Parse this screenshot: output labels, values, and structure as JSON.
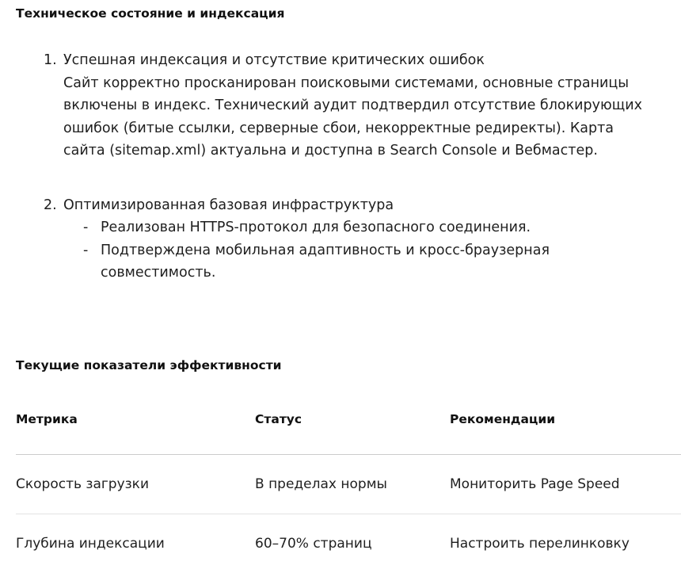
{
  "section1": {
    "title": "Техническое состояние и индексация",
    "items": [
      {
        "number": "1.",
        "title": "Успешная индексация и отсутствие критических ошибок",
        "text": "Сайт корректно просканирован поисковыми системами, основные страницы включены в индекс. Технический аудит подтвердил отсутствие блокирующих ошибок (битые ссылки, серверные сбои, некорректные редиректы). Карта сайта (sitemap.xml) актуальна и доступна в Search Console и Вебмастер."
      },
      {
        "number": "2.",
        "title": "Оптимизированная базовая инфраструктура",
        "bullets": [
          "Реализован HTTPS-протокол для безопасного соединения.",
          "Подтверждена мобильная адаптивность и кросс-браузерная совместимость."
        ]
      }
    ]
  },
  "section2": {
    "title": "Текущие показатели эффективности",
    "table": {
      "headers": [
        "Метрика",
        "Статус",
        "Рекомендации"
      ],
      "rows": [
        [
          "Скорость загрузки",
          "В пределах нормы",
          "Мониторить Page Speed"
        ],
        [
          "Глубина индексации",
          "60–70% страниц",
          "Настроить перелинковку"
        ]
      ]
    }
  }
}
